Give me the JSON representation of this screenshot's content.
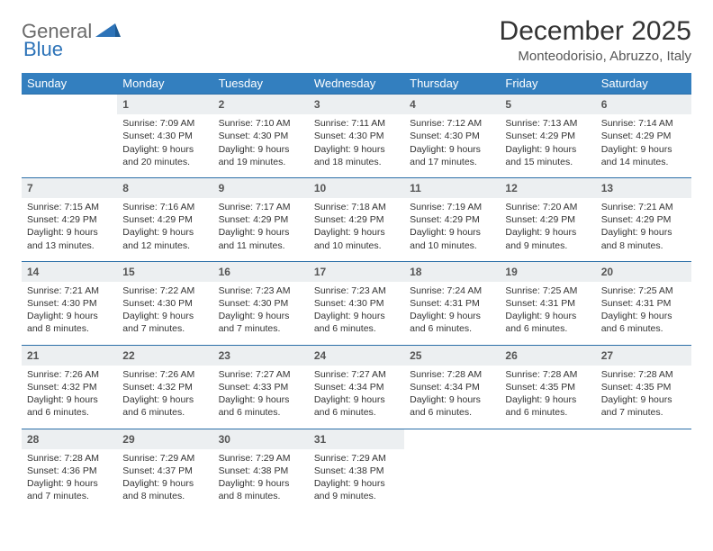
{
  "brand": {
    "general": "General",
    "blue": "Blue"
  },
  "title": "December 2025",
  "location": "Monteodorisio, Abruzzo, Italy",
  "colors": {
    "header_bg": "#337fbf",
    "header_text": "#ffffff",
    "daynum_bg": "#eceff1",
    "row_border": "#2b6fa8",
    "page_bg": "#ffffff",
    "text": "#333333",
    "logo_gray": "#6b6b6b",
    "logo_blue": "#2d73b8"
  },
  "weekdays": [
    "Sunday",
    "Monday",
    "Tuesday",
    "Wednesday",
    "Thursday",
    "Friday",
    "Saturday"
  ],
  "weeks": [
    {
      "nums": [
        "",
        "1",
        "2",
        "3",
        "4",
        "5",
        "6"
      ],
      "cells": [
        "",
        "Sunrise: 7:09 AM\nSunset: 4:30 PM\nDaylight: 9 hours and 20 minutes.",
        "Sunrise: 7:10 AM\nSunset: 4:30 PM\nDaylight: 9 hours and 19 minutes.",
        "Sunrise: 7:11 AM\nSunset: 4:30 PM\nDaylight: 9 hours and 18 minutes.",
        "Sunrise: 7:12 AM\nSunset: 4:30 PM\nDaylight: 9 hours and 17 minutes.",
        "Sunrise: 7:13 AM\nSunset: 4:29 PM\nDaylight: 9 hours and 15 minutes.",
        "Sunrise: 7:14 AM\nSunset: 4:29 PM\nDaylight: 9 hours and 14 minutes."
      ]
    },
    {
      "nums": [
        "7",
        "8",
        "9",
        "10",
        "11",
        "12",
        "13"
      ],
      "cells": [
        "Sunrise: 7:15 AM\nSunset: 4:29 PM\nDaylight: 9 hours and 13 minutes.",
        "Sunrise: 7:16 AM\nSunset: 4:29 PM\nDaylight: 9 hours and 12 minutes.",
        "Sunrise: 7:17 AM\nSunset: 4:29 PM\nDaylight: 9 hours and 11 minutes.",
        "Sunrise: 7:18 AM\nSunset: 4:29 PM\nDaylight: 9 hours and 10 minutes.",
        "Sunrise: 7:19 AM\nSunset: 4:29 PM\nDaylight: 9 hours and 10 minutes.",
        "Sunrise: 7:20 AM\nSunset: 4:29 PM\nDaylight: 9 hours and 9 minutes.",
        "Sunrise: 7:21 AM\nSunset: 4:29 PM\nDaylight: 9 hours and 8 minutes."
      ]
    },
    {
      "nums": [
        "14",
        "15",
        "16",
        "17",
        "18",
        "19",
        "20"
      ],
      "cells": [
        "Sunrise: 7:21 AM\nSunset: 4:30 PM\nDaylight: 9 hours and 8 minutes.",
        "Sunrise: 7:22 AM\nSunset: 4:30 PM\nDaylight: 9 hours and 7 minutes.",
        "Sunrise: 7:23 AM\nSunset: 4:30 PM\nDaylight: 9 hours and 7 minutes.",
        "Sunrise: 7:23 AM\nSunset: 4:30 PM\nDaylight: 9 hours and 6 minutes.",
        "Sunrise: 7:24 AM\nSunset: 4:31 PM\nDaylight: 9 hours and 6 minutes.",
        "Sunrise: 7:25 AM\nSunset: 4:31 PM\nDaylight: 9 hours and 6 minutes.",
        "Sunrise: 7:25 AM\nSunset: 4:31 PM\nDaylight: 9 hours and 6 minutes."
      ]
    },
    {
      "nums": [
        "21",
        "22",
        "23",
        "24",
        "25",
        "26",
        "27"
      ],
      "cells": [
        "Sunrise: 7:26 AM\nSunset: 4:32 PM\nDaylight: 9 hours and 6 minutes.",
        "Sunrise: 7:26 AM\nSunset: 4:32 PM\nDaylight: 9 hours and 6 minutes.",
        "Sunrise: 7:27 AM\nSunset: 4:33 PM\nDaylight: 9 hours and 6 minutes.",
        "Sunrise: 7:27 AM\nSunset: 4:34 PM\nDaylight: 9 hours and 6 minutes.",
        "Sunrise: 7:28 AM\nSunset: 4:34 PM\nDaylight: 9 hours and 6 minutes.",
        "Sunrise: 7:28 AM\nSunset: 4:35 PM\nDaylight: 9 hours and 6 minutes.",
        "Sunrise: 7:28 AM\nSunset: 4:35 PM\nDaylight: 9 hours and 7 minutes."
      ]
    },
    {
      "nums": [
        "28",
        "29",
        "30",
        "31",
        "",
        "",
        ""
      ],
      "cells": [
        "Sunrise: 7:28 AM\nSunset: 4:36 PM\nDaylight: 9 hours and 7 minutes.",
        "Sunrise: 7:29 AM\nSunset: 4:37 PM\nDaylight: 9 hours and 8 minutes.",
        "Sunrise: 7:29 AM\nSunset: 4:38 PM\nDaylight: 9 hours and 8 minutes.",
        "Sunrise: 7:29 AM\nSunset: 4:38 PM\nDaylight: 9 hours and 9 minutes.",
        "",
        "",
        ""
      ]
    }
  ]
}
